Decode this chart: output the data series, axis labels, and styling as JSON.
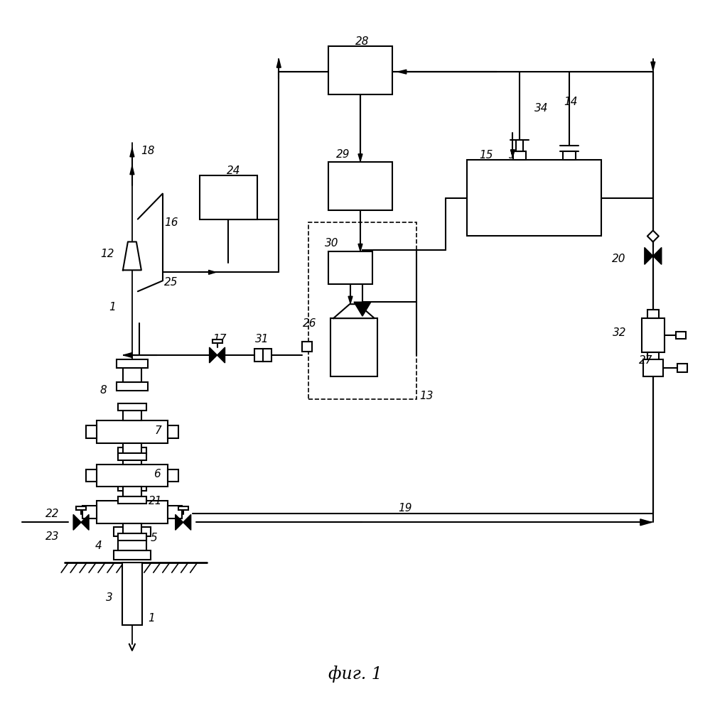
{
  "title": "фиг. 1",
  "bg_color": "#ffffff",
  "lc": "#000000",
  "lw": 1.5
}
